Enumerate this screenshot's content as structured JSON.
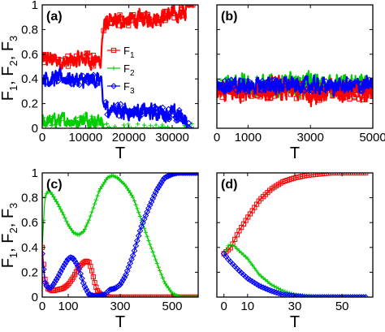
{
  "figure": {
    "ylabel": "F₁, F₂, F₃",
    "ylabel_parts": [
      "F",
      "1",
      ", F",
      "2",
      ", F",
      "3"
    ]
  },
  "chart_data": [
    {
      "panel": "(a)",
      "type": "line",
      "xlabel": "T",
      "xlim": [
        0,
        36000
      ],
      "ylim": [
        0,
        1
      ],
      "xticks": [
        "0",
        "10000",
        "20000",
        "30000"
      ],
      "xtick_values": [
        0,
        10000,
        20000,
        30000
      ],
      "yticks": [
        "0",
        "0.2",
        "0.4",
        "0.6",
        "0.8",
        "1"
      ],
      "ytick_values": [
        0,
        0.2,
        0.4,
        0.6,
        0.8,
        1
      ],
      "legend": {
        "placement": "center",
        "entries": [
          {
            "name": "F",
            "sub": "1",
            "color": "#ff0000",
            "marker": "square"
          },
          {
            "name": "F",
            "sub": "2",
            "color": "#00cc00",
            "marker": "plus"
          },
          {
            "name": "F",
            "sub": "3",
            "color": "#0000ff",
            "marker": "diamond"
          }
        ]
      },
      "series": [
        {
          "name": "F1",
          "color": "#ff0000",
          "noise": 0.05,
          "x": [
            0,
            2000,
            5000,
            8000,
            10000,
            12000,
            13500,
            14000,
            14500,
            16000,
            20000,
            25000,
            30000,
            33000,
            33500,
            35000
          ],
          "y": [
            0.55,
            0.56,
            0.53,
            0.55,
            0.57,
            0.54,
            0.55,
            0.78,
            0.84,
            0.86,
            0.88,
            0.89,
            0.92,
            0.93,
            1.0,
            1.0
          ]
        },
        {
          "name": "F2",
          "color": "#00cc00",
          "noise": 0.04,
          "x": [
            0,
            2000,
            5000,
            8000,
            10000,
            12000,
            13500,
            14000,
            14500,
            20000,
            30000,
            35000
          ],
          "y": [
            0.05,
            0.06,
            0.07,
            0.05,
            0.08,
            0.06,
            0.07,
            0.01,
            0.0,
            0.0,
            0.0,
            0.0
          ]
        },
        {
          "name": "F3",
          "color": "#0000ff",
          "noise": 0.05,
          "x": [
            0,
            2000,
            5000,
            8000,
            10000,
            12000,
            13500,
            14000,
            15000,
            20000,
            25000,
            30000,
            32000,
            33000,
            33500,
            35000
          ],
          "y": [
            0.42,
            0.4,
            0.41,
            0.39,
            0.38,
            0.4,
            0.39,
            0.2,
            0.16,
            0.14,
            0.13,
            0.12,
            0.1,
            0.08,
            0.0,
            0.0
          ]
        }
      ]
    },
    {
      "panel": "(b)",
      "type": "line",
      "xlabel": "T",
      "xlim": [
        0,
        5000
      ],
      "ylim": [
        0,
        1
      ],
      "xticks": [
        "0",
        "1000",
        "3000",
        "5000"
      ],
      "xtick_values": [
        0,
        1000,
        3000,
        5000
      ],
      "yticks": [],
      "ytick_values": [
        0,
        0.2,
        0.4,
        0.6,
        0.8,
        1
      ],
      "series": [
        {
          "name": "F2",
          "color": "#00cc00",
          "noise": 0.07,
          "x": [
            0,
            1000,
            2000,
            3000,
            4000,
            5000
          ],
          "y": [
            0.34,
            0.35,
            0.34,
            0.36,
            0.34,
            0.35
          ]
        },
        {
          "name": "F1",
          "color": "#ff0000",
          "noise": 0.07,
          "x": [
            0,
            1000,
            2000,
            3000,
            4000,
            5000
          ],
          "y": [
            0.3,
            0.29,
            0.31,
            0.29,
            0.3,
            0.3
          ]
        },
        {
          "name": "F3",
          "color": "#0000ff",
          "noise": 0.05,
          "x": [
            0,
            1000,
            2000,
            3000,
            4000,
            5000
          ],
          "y": [
            0.35,
            0.34,
            0.35,
            0.35,
            0.34,
            0.35
          ]
        }
      ]
    },
    {
      "panel": "(c)",
      "type": "line",
      "xlabel": "T",
      "xlim": [
        0,
        600
      ],
      "ylim": [
        0,
        1
      ],
      "xticks": [
        "0",
        "100",
        "300",
        "500"
      ],
      "xtick_values": [
        0,
        100,
        300,
        500
      ],
      "yticks": [
        "0",
        "0.2",
        "0.4",
        "0.6",
        "0.8",
        "1"
      ],
      "ytick_values": [
        0,
        0.2,
        0.4,
        0.6,
        0.8,
        1
      ],
      "series": [
        {
          "name": "F1",
          "color": "#ff0000",
          "marker": "square",
          "x": [
            0,
            10,
            20,
            30,
            40,
            60,
            80,
            100,
            120,
            140,
            160,
            170,
            180,
            190,
            200,
            210,
            220,
            240,
            260,
            280,
            300,
            400,
            500,
            600
          ],
          "y": [
            0.4,
            0.15,
            0.07,
            0.06,
            0.05,
            0.06,
            0.07,
            0.1,
            0.16,
            0.24,
            0.28,
            0.29,
            0.28,
            0.22,
            0.13,
            0.06,
            0.03,
            0.01,
            0.0,
            0.0,
            0.0,
            0.0,
            0.0,
            0.0
          ]
        },
        {
          "name": "F2",
          "color": "#00cc00",
          "marker": "plus",
          "x": [
            0,
            10,
            20,
            30,
            40,
            60,
            80,
            100,
            120,
            140,
            160,
            180,
            200,
            220,
            250,
            270,
            290,
            320,
            350,
            380,
            410,
            440,
            470,
            500,
            520,
            540,
            560,
            600
          ],
          "y": [
            0.4,
            0.8,
            0.85,
            0.85,
            0.82,
            0.75,
            0.67,
            0.58,
            0.52,
            0.5,
            0.53,
            0.62,
            0.74,
            0.86,
            0.96,
            0.98,
            0.96,
            0.9,
            0.8,
            0.63,
            0.45,
            0.28,
            0.12,
            0.03,
            0.01,
            0.0,
            0.0,
            0.0
          ]
        },
        {
          "name": "F3",
          "color": "#0000ff",
          "marker": "diamond",
          "x": [
            0,
            10,
            20,
            30,
            40,
            60,
            80,
            100,
            110,
            120,
            140,
            160,
            180,
            200,
            220,
            240,
            250,
            260,
            280,
            300,
            320,
            350,
            380,
            410,
            440,
            470,
            500,
            520,
            550,
            600
          ],
          "y": [
            0.35,
            0.12,
            0.08,
            0.07,
            0.09,
            0.16,
            0.24,
            0.31,
            0.32,
            0.31,
            0.24,
            0.1,
            0.02,
            0.01,
            0.01,
            0.02,
            0.04,
            0.06,
            0.07,
            0.1,
            0.17,
            0.34,
            0.56,
            0.72,
            0.86,
            0.96,
            0.99,
            1.0,
            1.0,
            1.0
          ]
        }
      ]
    },
    {
      "panel": "(d)",
      "type": "line",
      "xlabel": "T",
      "xlim": [
        -3,
        63
      ],
      "ylim": [
        0,
        1
      ],
      "xticks": [
        "0",
        "10",
        "30",
        "50"
      ],
      "xtick_values": [
        0,
        10,
        30,
        50
      ],
      "yticks": [],
      "ytick_values": [
        0,
        0.2,
        0.4,
        0.6,
        0.8,
        1
      ],
      "series": [
        {
          "name": "F1",
          "color": "#ff0000",
          "marker": "square",
          "x": [
            0,
            3,
            6,
            10,
            15,
            20,
            25,
            30,
            35,
            40,
            45,
            50,
            55,
            60
          ],
          "y": [
            0.35,
            0.4,
            0.52,
            0.64,
            0.78,
            0.87,
            0.93,
            0.96,
            0.98,
            0.99,
            1.0,
            1.0,
            1.0,
            1.0
          ]
        },
        {
          "name": "F2",
          "color": "#00cc00",
          "marker": "plus",
          "x": [
            0,
            2,
            4,
            6,
            10,
            15,
            20,
            25,
            30,
            35,
            40,
            50,
            60
          ],
          "y": [
            0.33,
            0.42,
            0.42,
            0.38,
            0.31,
            0.18,
            0.1,
            0.05,
            0.02,
            0.01,
            0.0,
            0.0,
            0.0
          ]
        },
        {
          "name": "F3",
          "color": "#0000ff",
          "marker": "diamond",
          "x": [
            0,
            2,
            4,
            6,
            10,
            15,
            20,
            25,
            30,
            35,
            40,
            50,
            60
          ],
          "y": [
            0.35,
            0.3,
            0.26,
            0.22,
            0.15,
            0.09,
            0.05,
            0.02,
            0.01,
            0.0,
            0.0,
            0.0,
            0.0
          ]
        }
      ]
    }
  ]
}
